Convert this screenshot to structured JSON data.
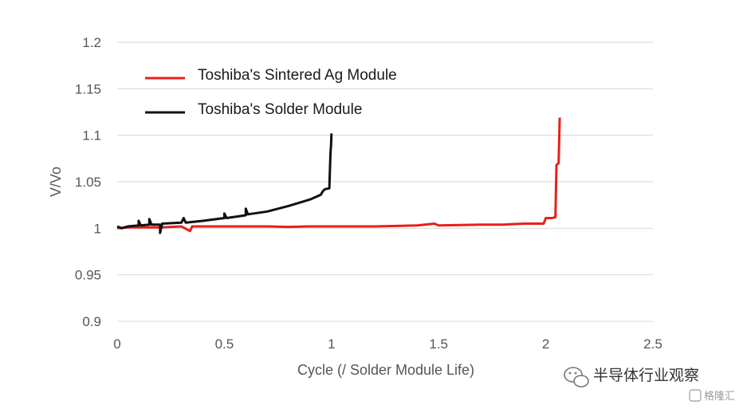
{
  "chart_data": {
    "type": "line",
    "title": "",
    "xlabel": "Cycle (/  Solder Module Life)",
    "ylabel": "V/Vo",
    "xlim": [
      0,
      2.5
    ],
    "ylim": [
      0.9,
      1.2
    ],
    "xticks": [
      "0",
      "0.5",
      "1",
      "1.5",
      "2",
      "2.5"
    ],
    "yticks": [
      "0.9",
      "0.95",
      "1",
      "1.05",
      "1.1",
      "1.15",
      "1.2"
    ],
    "grid": "horizontal",
    "legend_position": "top-left",
    "series": [
      {
        "name": "Toshiba's Sintered Ag Module",
        "color": "#e8201a",
        "points": [
          [
            0.0,
            1.0
          ],
          [
            0.05,
            1.001
          ],
          [
            0.1,
            1.001
          ],
          [
            0.2,
            1.001
          ],
          [
            0.3,
            1.002
          ],
          [
            0.34,
            0.997
          ],
          [
            0.35,
            1.002
          ],
          [
            0.5,
            1.002
          ],
          [
            0.7,
            1.002
          ],
          [
            0.8,
            1.0015
          ],
          [
            0.9,
            1.002
          ],
          [
            1.0,
            1.002
          ],
          [
            1.2,
            1.002
          ],
          [
            1.4,
            1.003
          ],
          [
            1.48,
            1.005
          ],
          [
            1.5,
            1.003
          ],
          [
            1.7,
            1.004
          ],
          [
            1.8,
            1.004
          ],
          [
            1.9,
            1.005
          ],
          [
            1.99,
            1.005
          ],
          [
            2.0,
            1.011
          ],
          [
            2.03,
            1.011
          ],
          [
            2.045,
            1.012
          ],
          [
            2.05,
            1.068
          ],
          [
            2.06,
            1.07
          ],
          [
            2.065,
            1.119
          ]
        ]
      },
      {
        "name": "Toshiba's Solder Module",
        "color": "#111111",
        "points": [
          [
            0.0,
            1.002
          ],
          [
            0.02,
            1.0
          ],
          [
            0.05,
            1.002
          ],
          [
            0.1,
            1.003
          ],
          [
            0.1,
            1.008
          ],
          [
            0.11,
            1.003
          ],
          [
            0.15,
            1.004
          ],
          [
            0.15,
            1.01
          ],
          [
            0.16,
            1.004
          ],
          [
            0.2,
            1.004
          ],
          [
            0.2,
            0.995
          ],
          [
            0.21,
            1.005
          ],
          [
            0.3,
            1.006
          ],
          [
            0.31,
            1.011
          ],
          [
            0.32,
            1.006
          ],
          [
            0.4,
            1.008
          ],
          [
            0.5,
            1.011
          ],
          [
            0.5,
            1.016
          ],
          [
            0.51,
            1.011
          ],
          [
            0.6,
            1.014
          ],
          [
            0.6,
            1.021
          ],
          [
            0.61,
            1.015
          ],
          [
            0.7,
            1.018
          ],
          [
            0.8,
            1.024
          ],
          [
            0.9,
            1.031
          ],
          [
            0.95,
            1.036
          ],
          [
            0.96,
            1.04
          ],
          [
            0.97,
            1.042
          ],
          [
            0.99,
            1.043
          ],
          [
            0.995,
            1.08
          ],
          [
            0.998,
            1.09
          ],
          [
            1.0,
            1.102
          ]
        ]
      }
    ]
  },
  "watermark": {
    "text": "半导体行业观察",
    "subtext": "格隆汇",
    "icon": "wechat-icon"
  }
}
